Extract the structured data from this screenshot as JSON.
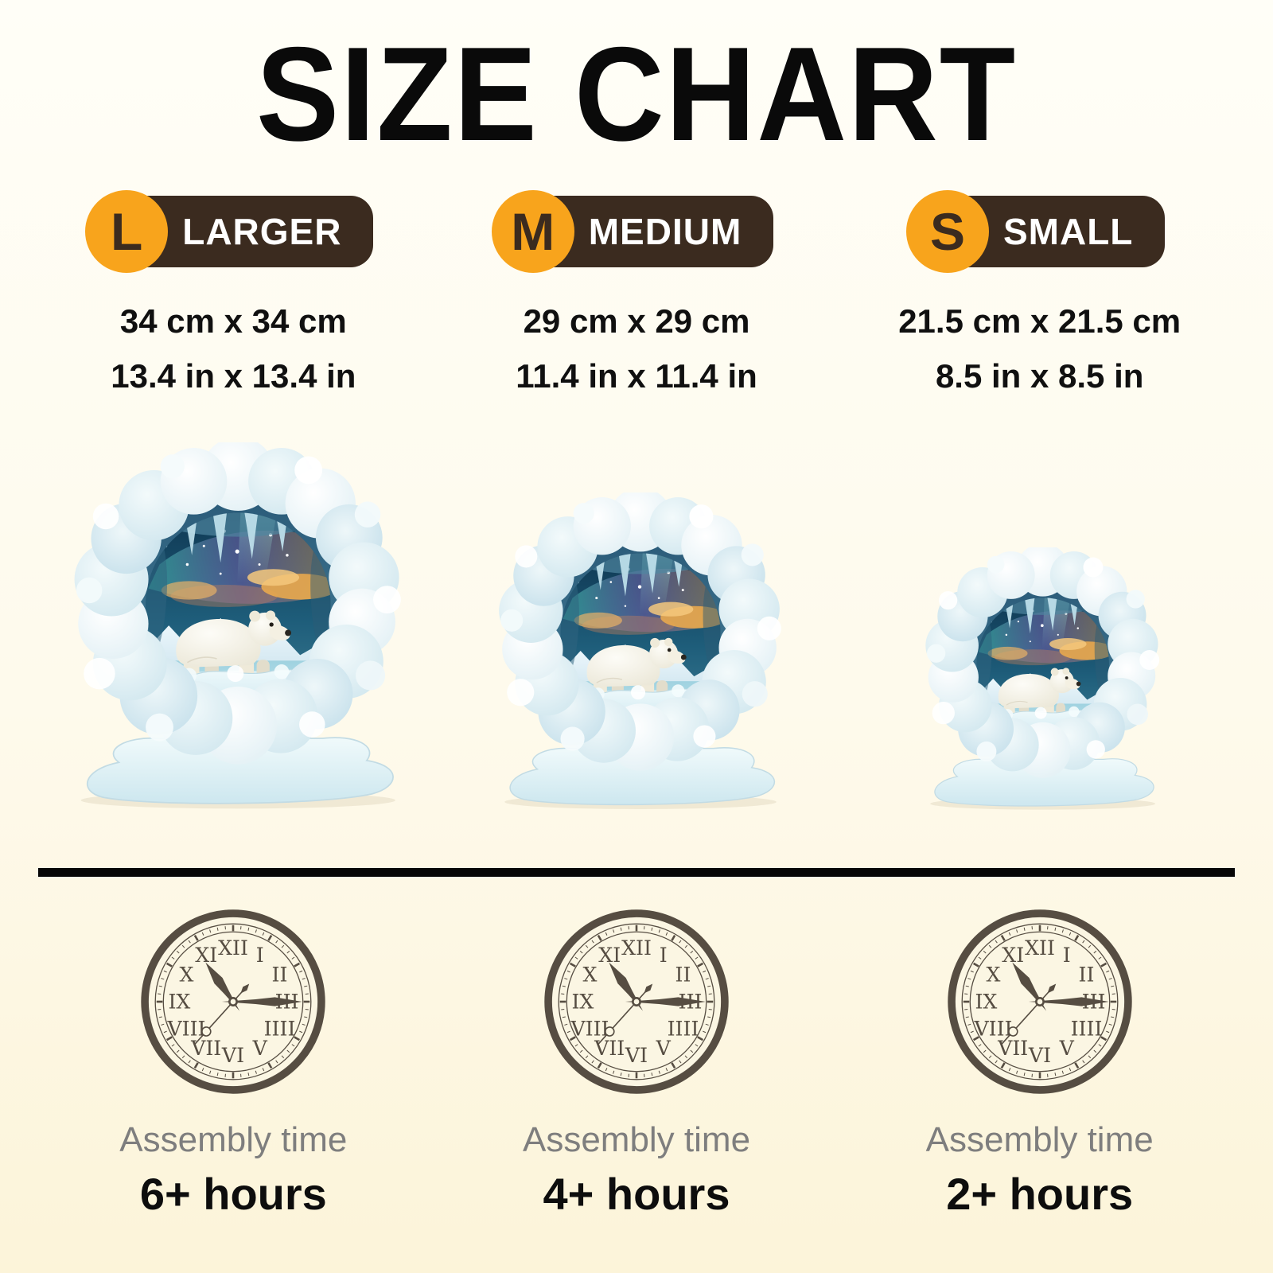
{
  "title": "SIZE CHART",
  "columns": [
    {
      "id": "larger",
      "badge_letter": "L",
      "badge_label": "LARGER",
      "dimensions_cm": "34 cm x 34 cm",
      "dimensions_in": "13.4 in x 13.4 in",
      "assembly_label": "Assembly time",
      "assembly_time": "6+ hours"
    },
    {
      "id": "medium",
      "badge_letter": "M",
      "badge_label": "MEDIUM",
      "dimensions_cm": "29 cm x 29 cm",
      "dimensions_in": "11.4 in x 11.4 in",
      "assembly_label": "Assembly time",
      "assembly_time": "4+ hours"
    },
    {
      "id": "small",
      "badge_letter": "S",
      "badge_label": "SMALL",
      "dimensions_cm": "21.5 cm x 21.5 cm",
      "dimensions_in": "8.5 in x 8.5 in",
      "assembly_label": "Assembly time",
      "assembly_time": "2+ hours"
    }
  ],
  "icons": {
    "puzzle": "polar-bear-ice-cave-puzzle",
    "clock": "clock-icon"
  },
  "clock": {
    "face_color": "#fbf6e3",
    "roman_numerals": [
      "XII",
      "I",
      "II",
      "III",
      "IIII",
      "V",
      "VI",
      "VII",
      "VIII",
      "IX",
      "X",
      "XI"
    ],
    "hands": {
      "hour_deg": -35,
      "minute_deg": 90,
      "second_deg": 222
    }
  },
  "colors": {
    "background_top": "#fffef7",
    "background_bottom": "#fcf4d9",
    "accent_orange": "#f8a41c",
    "badge_brown": "#3b2b1f",
    "badge_text": "#ffffff",
    "title": "#0a0a0a",
    "dimension_text": "#101010",
    "divider": "#060606",
    "clock": "#564d42",
    "assembly_label": "#7e7e7e",
    "assembly_value": "#0d0d0d"
  }
}
